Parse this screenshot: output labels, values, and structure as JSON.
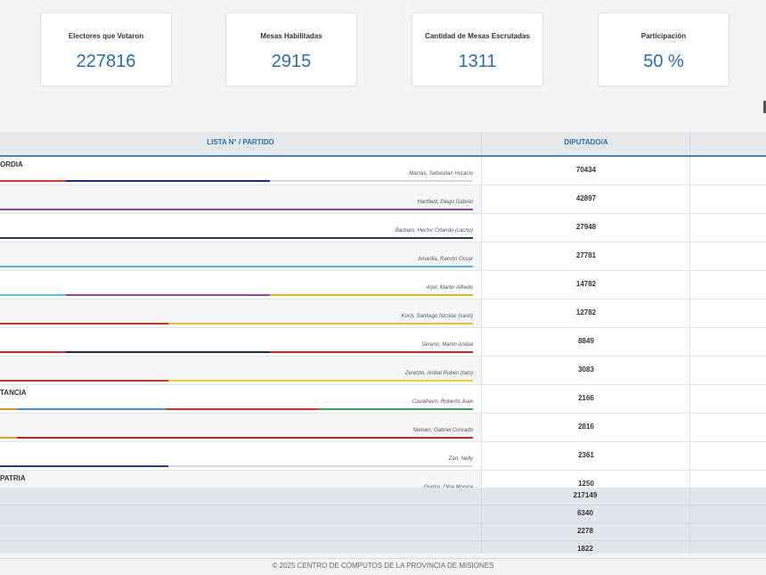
{
  "summary": [
    {
      "label": "Electores que Votaron",
      "value": "227816"
    },
    {
      "label": "Mesas Habilitadas",
      "value": "2915"
    },
    {
      "label": "Cantidad de Mesas Escrutadas",
      "value": "1311"
    },
    {
      "label": "Participación",
      "value": "50 %"
    }
  ],
  "table": {
    "header": {
      "partido": "LISTA N° / PARTIDO",
      "diputado": "DIPUTADO/A"
    },
    "rows": [
      {
        "party": "ORDIA",
        "candidate": "Macías, Sebastian Horacio",
        "votes": "70434",
        "segments": [
          {
            "color": "#d63a3a",
            "frac": 0.14
          },
          {
            "color": "#1e2a8a",
            "frac": 0.43
          },
          {
            "color": "#d7d9dd",
            "frac": 0.43
          }
        ]
      },
      {
        "party": "",
        "candidate": "Hartfield, Diego Gabriel",
        "votes": "42897",
        "segments": [
          {
            "color": "#8e44ad",
            "frac": 1
          }
        ]
      },
      {
        "party": "",
        "candidate": "Barbaro, Hector Orlando (cacho)",
        "votes": "27948",
        "segments": [
          {
            "color": "#2b3a55",
            "frac": 1
          }
        ]
      },
      {
        "party": "",
        "candidate": "Amarilla, Ramón Oscar",
        "votes": "27781",
        "segments": [
          {
            "color": "#5aaecc",
            "frac": 1
          }
        ]
      },
      {
        "party": "",
        "candidate": "Arjol, Martin Alfredo",
        "votes": "14782",
        "segments": [
          {
            "color": "#5bc0de",
            "frac": 0.14
          },
          {
            "color": "#8e44ad",
            "frac": 0.43
          },
          {
            "color": "#e0b32b",
            "frac": 0.43
          }
        ]
      },
      {
        "party": "",
        "candidate": "Koch, Santiago Nicolas (santi)",
        "votes": "12782",
        "segments": [
          {
            "color": "#c0392b",
            "frac": 0.355
          },
          {
            "color": "#e8c12a",
            "frac": 0.645
          }
        ]
      },
      {
        "party": "",
        "candidate": "Sereno, Martin Anibal",
        "votes": "8849",
        "segments": [
          {
            "color": "#b03030",
            "frac": 0.14
          },
          {
            "color": "#1e2a44",
            "frac": 0.43
          },
          {
            "color": "#b03030",
            "frac": 0.43
          }
        ]
      },
      {
        "party": "",
        "candidate": "Zeretzki, Anibal Ruben (tato)",
        "votes": "3083",
        "segments": [
          {
            "color": "#c0392b",
            "frac": 0.355
          },
          {
            "color": "#e8d22a",
            "frac": 0.645
          }
        ]
      },
      {
        "party": "TANCIA",
        "candidate": "Cavalheiro, Roberto Juan",
        "votes": "2166",
        "segments": [
          {
            "color": "#e08a2a",
            "frac": 0.035
          },
          {
            "color": "#4a8fd0",
            "frac": 0.315
          },
          {
            "color": "#c0392b",
            "frac": 0.325
          },
          {
            "color": "#3aa35a",
            "frac": 0.325
          }
        ]
      },
      {
        "party": "",
        "candidate": "Nielsen, Gabriel Conrado",
        "votes": "2816",
        "segments": [
          {
            "color": "#d4a52a",
            "frac": 0.035
          },
          {
            "color": "#b8282e",
            "frac": 0.965
          }
        ]
      },
      {
        "party": "",
        "candidate": "Zart, Nelly",
        "votes": "2361",
        "segments": [
          {
            "color": "#2c3a8a",
            "frac": 0.355
          },
          {
            "color": "#d7d9dd",
            "frac": 0.645
          }
        ]
      },
      {
        "party": "PATRIA",
        "candidate": "Gurina, Olga Monica",
        "votes": "1250",
        "segments": [
          {
            "color": "#4a6b8a",
            "frac": 1
          }
        ]
      }
    ],
    "totals": [
      "217149",
      "6340",
      "2278",
      "1822"
    ]
  },
  "footer": "© 2025 CENTRO DE CÓMPUTOS DE LA PROVINCIA DE MISIONES"
}
